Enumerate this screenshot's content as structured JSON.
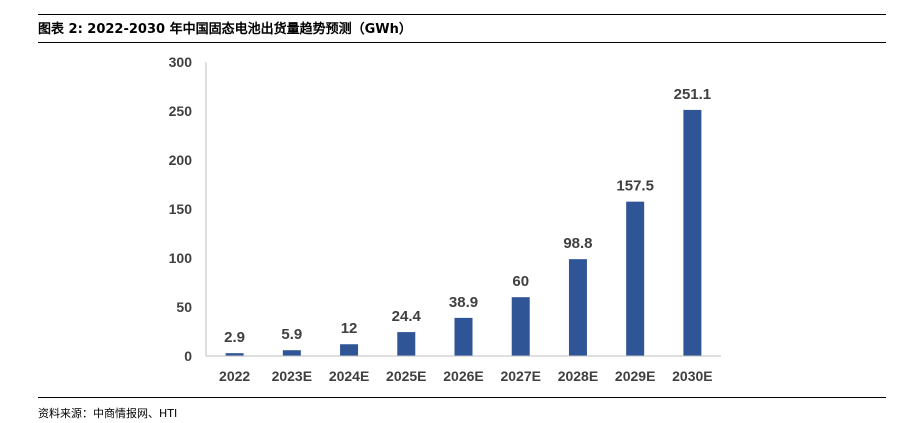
{
  "title": "图表 2: 2022-2030 年中国固态电池出货量趋势预测（GWh）",
  "source": "资料来源：中商情报网、HTI",
  "colors": {
    "bar": "#2F5597",
    "axis": "#404040",
    "text": "#404040"
  },
  "chart_data": {
    "type": "bar",
    "categories": [
      "2022",
      "2023E",
      "2024E",
      "2025E",
      "2026E",
      "2027E",
      "2028E",
      "2029E",
      "2030E"
    ],
    "values": [
      2.9,
      5.9,
      12,
      24.4,
      38.9,
      60,
      98.8,
      157.5,
      251.1
    ],
    "data_labels": [
      "2.9",
      "5.9",
      "12",
      "24.4",
      "38.9",
      "60",
      "98.8",
      "157.5",
      "251.1"
    ],
    "y_ticks": [
      0,
      50,
      100,
      150,
      200,
      250,
      300
    ],
    "ylim": [
      0,
      300
    ],
    "grid": false,
    "legend": "none"
  }
}
